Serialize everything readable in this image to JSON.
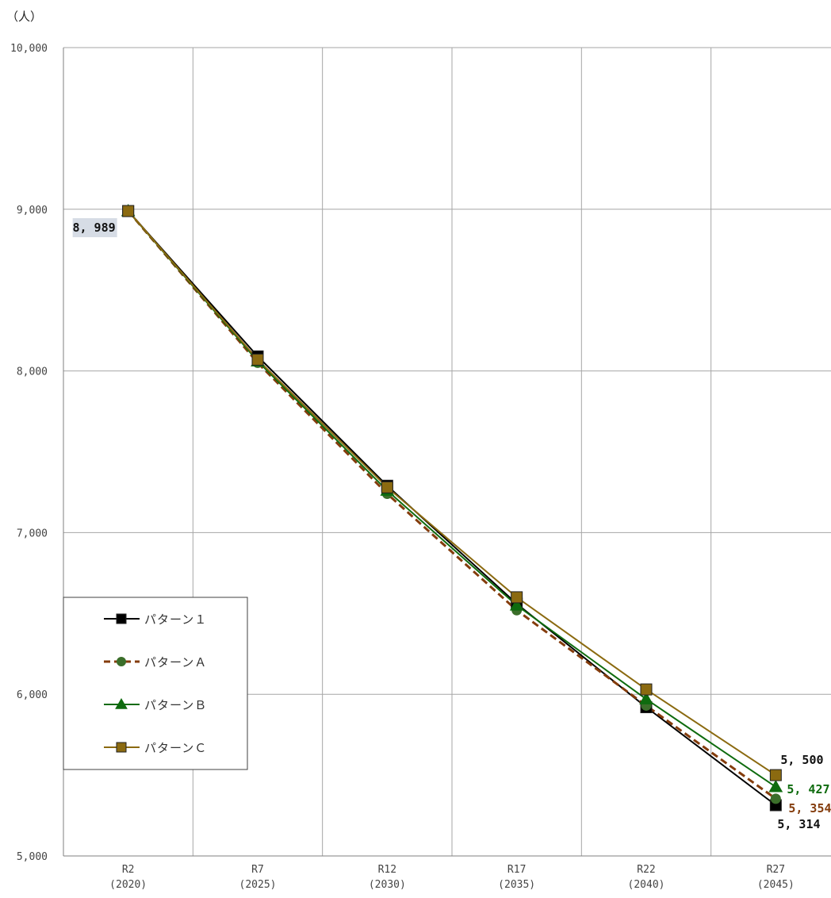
{
  "chart_data": {
    "type": "line",
    "y_unit": "（人）",
    "ylim": [
      5000,
      10000
    ],
    "y_ticks": [
      5000,
      6000,
      7000,
      8000,
      9000,
      10000
    ],
    "y_tick_labels": [
      "5,000",
      "6,000",
      "7,000",
      "8,000",
      "9,000",
      "10,000"
    ],
    "categories": [
      "R2",
      "R7",
      "R12",
      "R17",
      "R22",
      "R27"
    ],
    "categories_sub": [
      "(2020)",
      "(2025)",
      "(2030)",
      "(2035)",
      "(2040)",
      "(2045)"
    ],
    "grid": true,
    "legend_position": "bottom-left",
    "series": [
      {
        "name": "パターン１",
        "color": "#000000",
        "marker": "square",
        "dash": false,
        "values": [
          8989,
          8090,
          7290,
          6560,
          5920,
          5314
        ]
      },
      {
        "name": "パターンＡ",
        "color": "#843C0C",
        "marker_color": "#3B6E2A",
        "marker": "circle",
        "dash": true,
        "values": [
          8989,
          8050,
          7240,
          6520,
          5930,
          5354
        ]
      },
      {
        "name": "パターンＢ",
        "color": "#0E6B0E",
        "marker": "triangle",
        "dash": false,
        "values": [
          8989,
          8060,
          7260,
          6550,
          5970,
          5427
        ]
      },
      {
        "name": "パターンＣ",
        "color": "#8B6A10",
        "marker": "square",
        "dash": false,
        "values": [
          8989,
          8070,
          7280,
          6600,
          6030,
          5500
        ]
      }
    ],
    "data_labels": [
      {
        "text": "8, 989",
        "series": 0,
        "index": 0,
        "color": "#111111",
        "background": "#D6DCE5",
        "side": "left-below"
      },
      {
        "text": "5, 500",
        "series": 3,
        "index": 5,
        "color": "#111111",
        "side": "above-right"
      },
      {
        "text": "5, 427",
        "series": 2,
        "index": 5,
        "color": "#0E6B0E",
        "side": "right"
      },
      {
        "text": "5, 354",
        "series": 1,
        "index": 5,
        "color": "#843C0C",
        "side": "right-far"
      },
      {
        "text": "5, 314",
        "series": 0,
        "index": 5,
        "color": "#111111",
        "side": "below"
      }
    ]
  }
}
